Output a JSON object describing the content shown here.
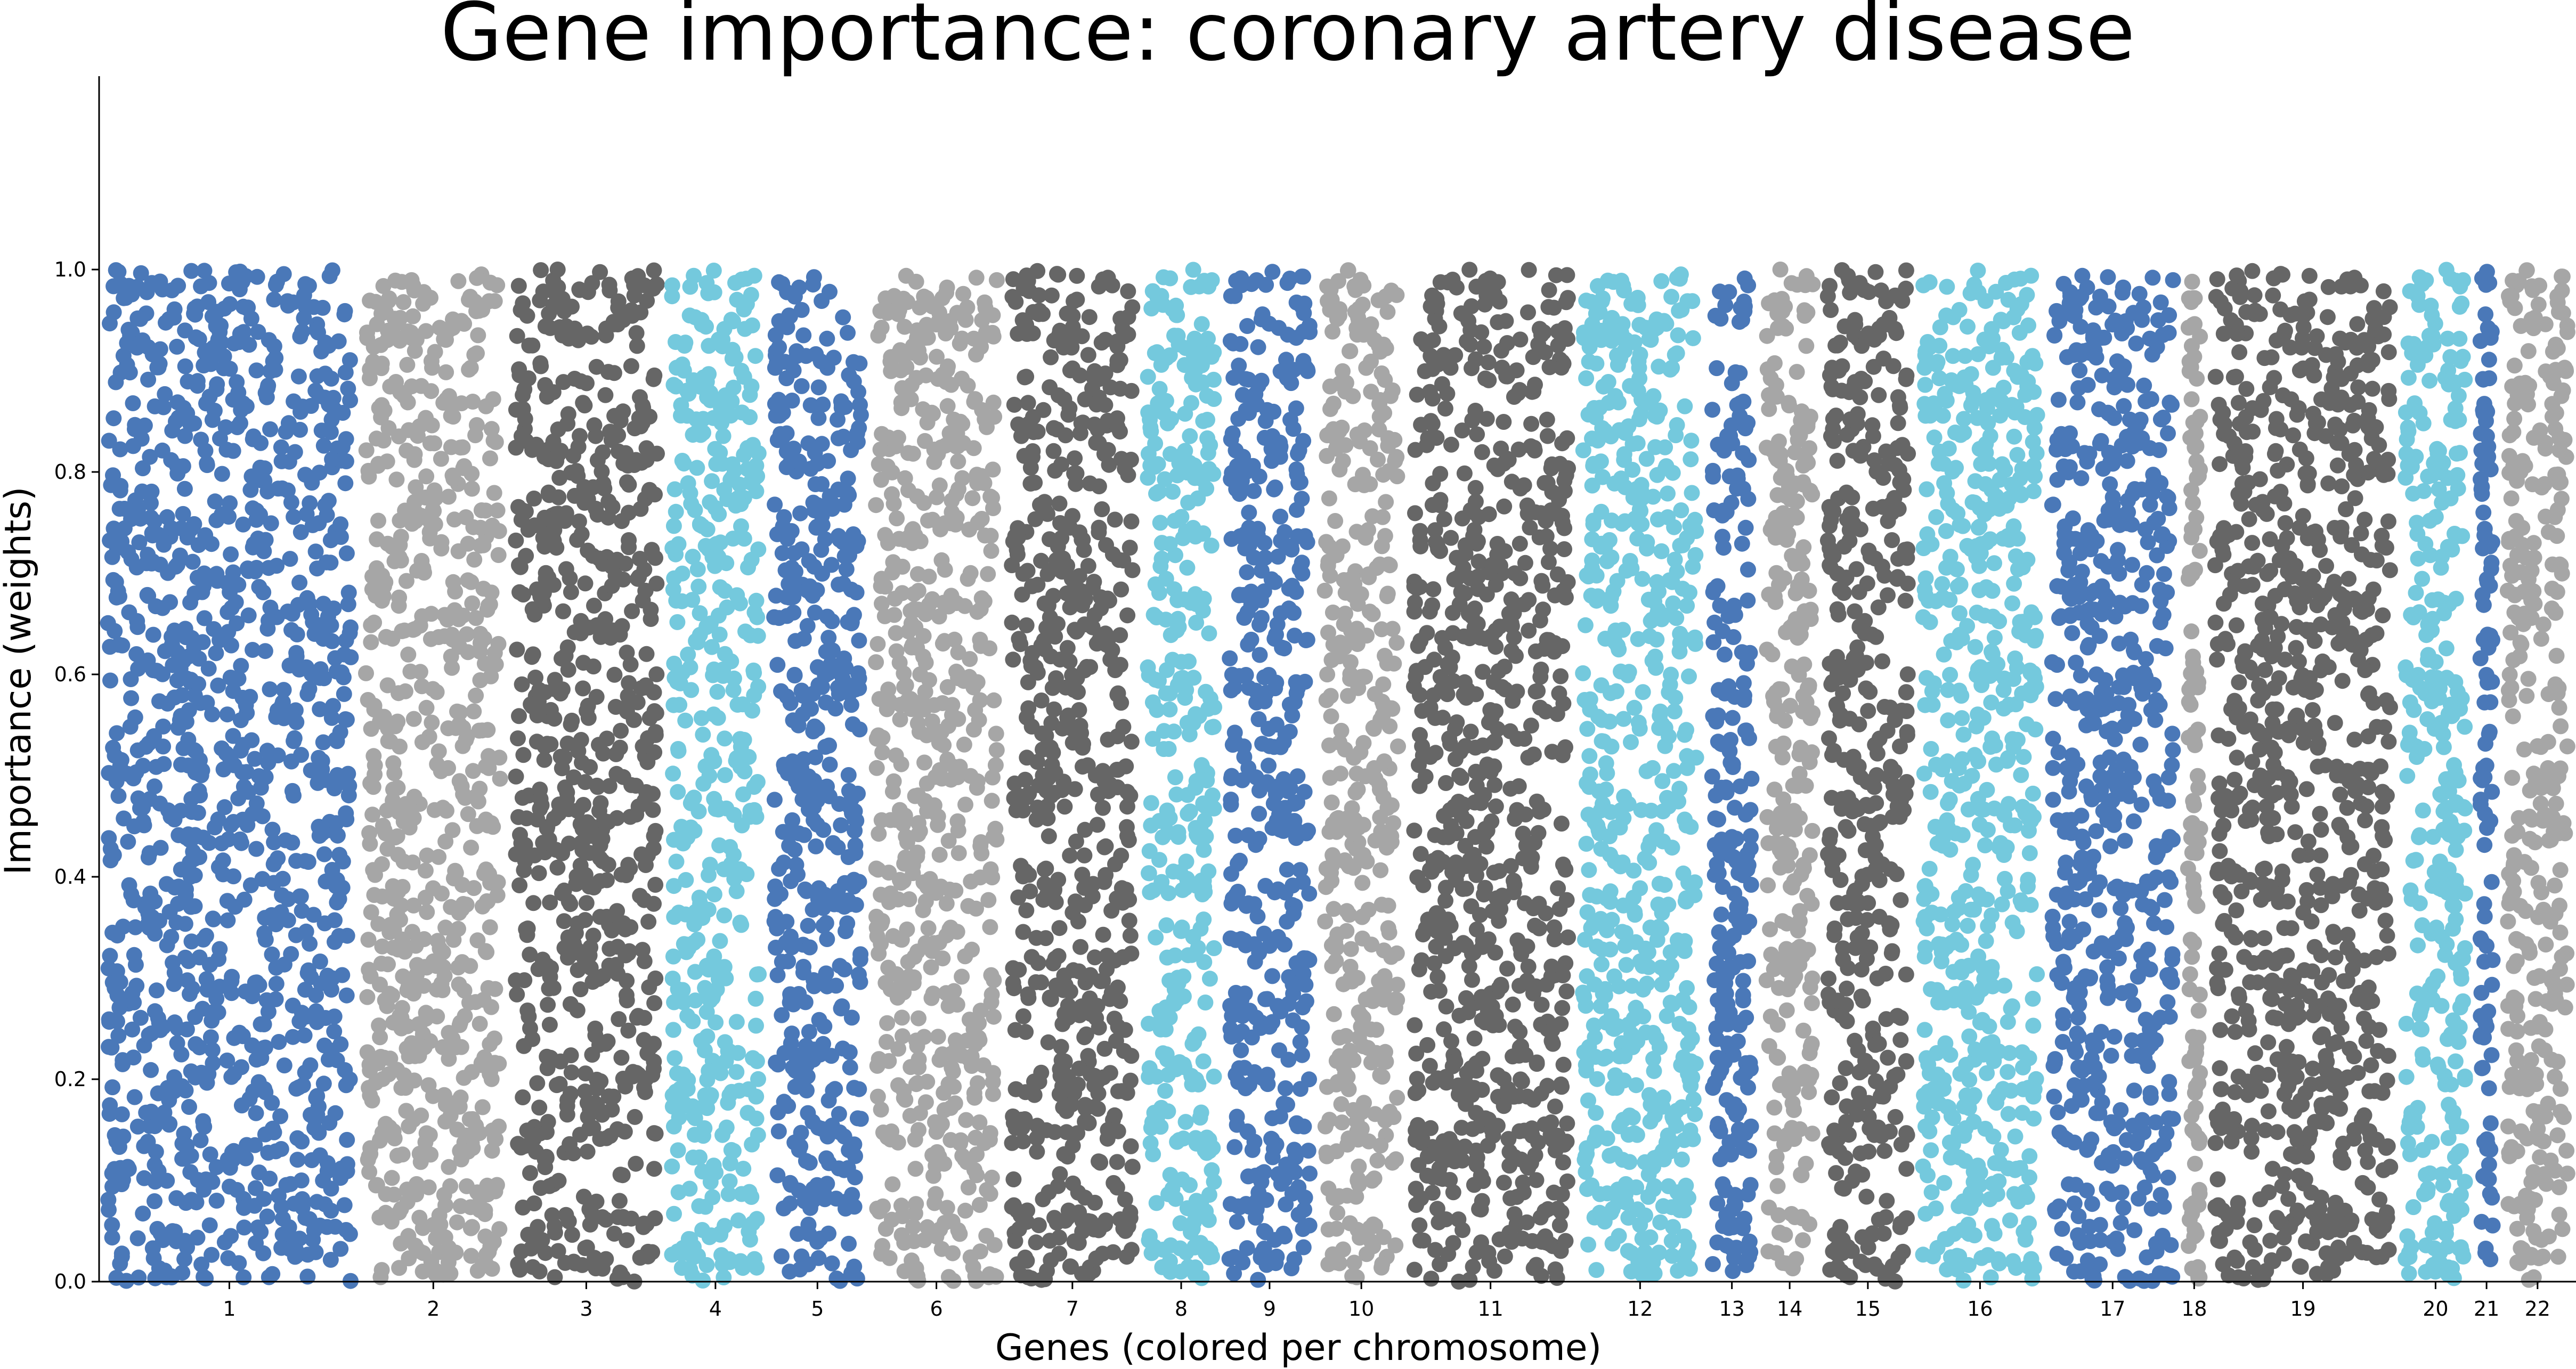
{
  "chart_data": {
    "type": "scatter",
    "title": "Gene importance: coronary artery disease",
    "xlabel": "Genes (colored per chromosome)",
    "ylabel": "Importance (weights)",
    "ylim": [
      0,
      1.2
    ],
    "yticks": [
      0.0,
      0.2,
      0.4,
      0.6,
      0.8,
      1.0
    ],
    "ytick_labels": [
      "0.0",
      "0.2",
      "0.4",
      "0.6",
      "0.8",
      "1.0"
    ],
    "grid": false,
    "palette": [
      "#4a78b8",
      "#a6a6a6",
      "#666666",
      "#74c9dd"
    ],
    "y_distribution": "uniform 0.0–1.0 (random gene weights)",
    "chromosomes": [
      {
        "label": "1",
        "start": 0,
        "end": 1900,
        "color": "#4a78b8"
      },
      {
        "label": "2",
        "start": 1900,
        "end": 3000,
        "color": "#a6a6a6"
      },
      {
        "label": "3",
        "start": 3000,
        "end": 4150,
        "color": "#666666"
      },
      {
        "label": "4",
        "start": 4150,
        "end": 4900,
        "color": "#74c9dd"
      },
      {
        "label": "5",
        "start": 4900,
        "end": 5650,
        "color": "#4a78b8"
      },
      {
        "label": "6",
        "start": 5650,
        "end": 6650,
        "color": "#a6a6a6"
      },
      {
        "label": "7",
        "start": 6650,
        "end": 7650,
        "color": "#666666"
      },
      {
        "label": "8",
        "start": 7650,
        "end": 8250,
        "color": "#74c9dd"
      },
      {
        "label": "9",
        "start": 8250,
        "end": 8950,
        "color": "#4a78b8"
      },
      {
        "label": "10",
        "start": 8950,
        "end": 9600,
        "color": "#a6a6a6"
      },
      {
        "label": "11",
        "start": 9600,
        "end": 10850,
        "color": "#666666"
      },
      {
        "label": "12",
        "start": 10850,
        "end": 11800,
        "color": "#74c9dd"
      },
      {
        "label": "13",
        "start": 11800,
        "end": 12200,
        "color": "#4a78b8"
      },
      {
        "label": "14",
        "start": 12200,
        "end": 12650,
        "color": "#a6a6a6"
      },
      {
        "label": "15",
        "start": 12650,
        "end": 13350,
        "color": "#666666"
      },
      {
        "label": "16",
        "start": 13350,
        "end": 14300,
        "color": "#74c9dd"
      },
      {
        "label": "17",
        "start": 14300,
        "end": 15300,
        "color": "#4a78b8"
      },
      {
        "label": "18",
        "start": 15300,
        "end": 15500,
        "color": "#a6a6a6"
      },
      {
        "label": "19",
        "start": 15500,
        "end": 16900,
        "color": "#666666"
      },
      {
        "label": "20",
        "start": 16900,
        "end": 17450,
        "color": "#74c9dd"
      },
      {
        "label": "21",
        "start": 17450,
        "end": 17650,
        "color": "#4a78b8"
      },
      {
        "label": "22",
        "start": 17650,
        "end": 18200,
        "color": "#a6a6a6"
      }
    ],
    "x_range": [
      0,
      18200
    ]
  }
}
